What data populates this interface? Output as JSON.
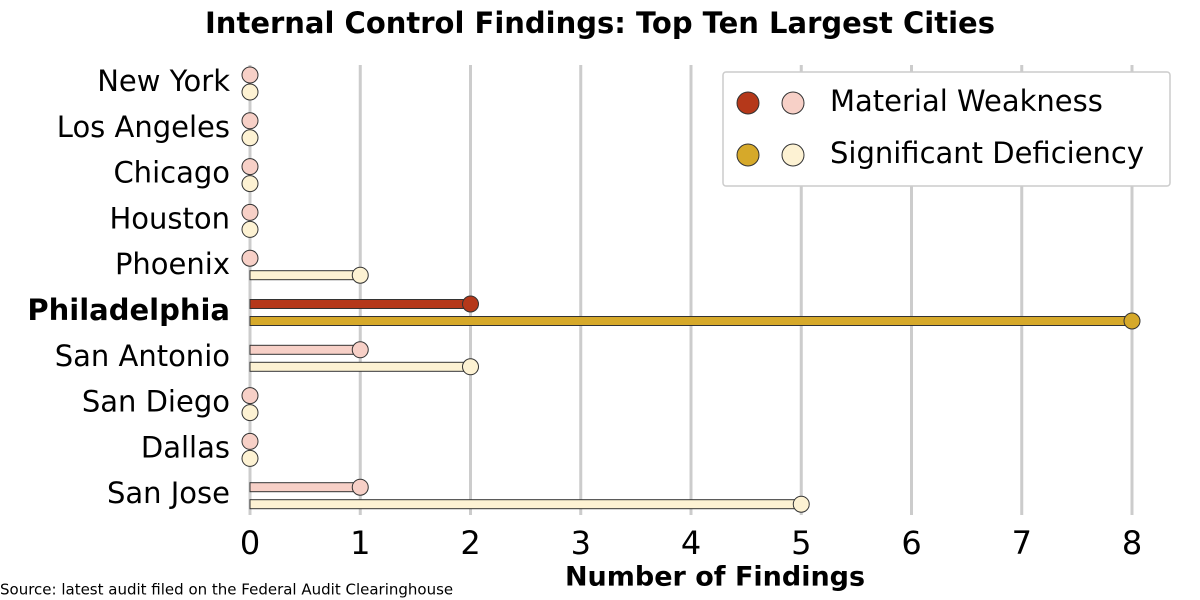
{
  "chart_data": {
    "type": "lollipop",
    "title": "Internal Control Findings: Top Ten Largest Cities",
    "categories": [
      "New York",
      "Los Angeles",
      "Chicago",
      "Houston",
      "Phoenix",
      "Philadelphia",
      "San Antonio",
      "San Diego",
      "Dallas",
      "San Jose"
    ],
    "highlight_category": "Philadelphia",
    "series": [
      {
        "name": "Material Weakness",
        "color": "#f7d0c7",
        "highlight_color": "#b5381a",
        "values": [
          0,
          0,
          0,
          0,
          0,
          2,
          1,
          0,
          0,
          1
        ]
      },
      {
        "name": "Significant Deficiency",
        "color": "#fdf2d3",
        "highlight_color": "#d6a92a",
        "values": [
          0,
          0,
          0,
          0,
          1,
          8,
          2,
          0,
          0,
          5
        ]
      }
    ],
    "xlim": [
      0,
      8
    ],
    "xticks": [
      0,
      1,
      2,
      3,
      4,
      5,
      6,
      7,
      8
    ],
    "grid": true,
    "xlabel": "Number of Findings",
    "legend": "upper right",
    "source": "Source: latest audit filed on the Federal Audit Clearinghouse"
  }
}
